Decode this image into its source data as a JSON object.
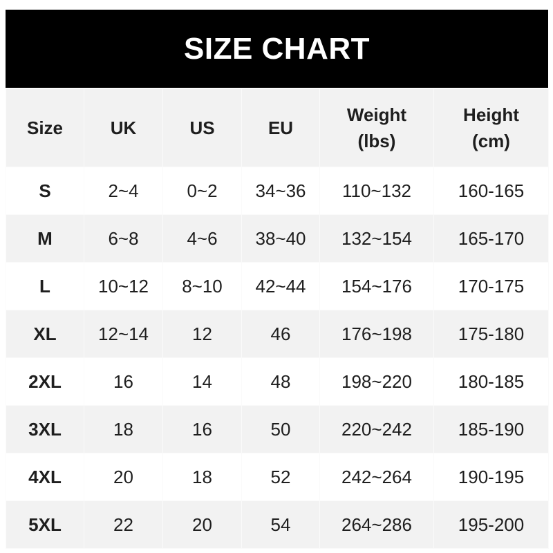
{
  "title": "SIZE CHART",
  "headers": [
    "Size",
    "UK",
    "US",
    "EU",
    "Weight\n(lbs)",
    "Height\n(cm)"
  ],
  "rows": [
    [
      "S",
      "2~4",
      "0~2",
      "34~36",
      "110~132",
      "160-165"
    ],
    [
      "M",
      "6~8",
      "4~6",
      "38~40",
      "132~154",
      "165-170"
    ],
    [
      "L",
      "10~12",
      "8~10",
      "42~44",
      "154~176",
      "170-175"
    ],
    [
      "XL",
      "12~14",
      "12",
      "46",
      "176~198",
      "175-180"
    ],
    [
      "2XL",
      "16",
      "14",
      "48",
      "198~220",
      "180-185"
    ],
    [
      "3XL",
      "18",
      "16",
      "50",
      "220~242",
      "185-190"
    ],
    [
      "4XL",
      "20",
      "18",
      "52",
      "242~264",
      "190-195"
    ],
    [
      "5XL",
      "22",
      "20",
      "54",
      "264~286",
      "195-200"
    ]
  ]
}
